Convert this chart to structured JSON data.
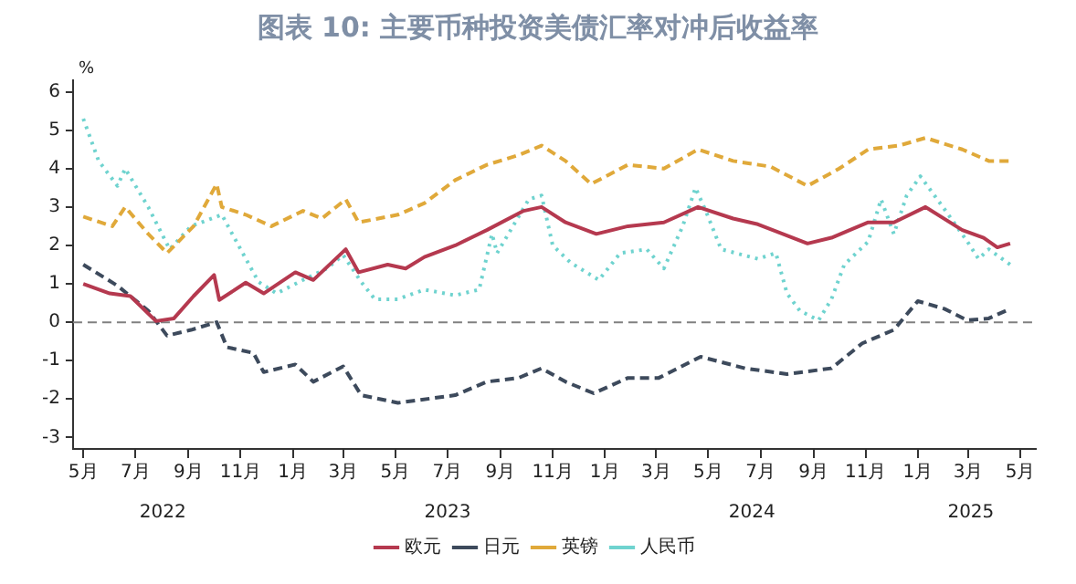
{
  "chart_data": {
    "type": "line",
    "title": "图表 10: 主要币种投资美债汇率对冲后收益率",
    "ylabel": "%",
    "xlim": [
      "2022-04-19",
      "2025-05-19"
    ],
    "xticks": [
      {
        "value": "2022-05",
        "label": "5月"
      },
      {
        "value": "2022-07",
        "label": "7月"
      },
      {
        "value": "2022-09",
        "label": "9月"
      },
      {
        "value": "2022-11",
        "label": "11月"
      },
      {
        "value": "2023-01",
        "label": "1月"
      },
      {
        "value": "2023-03",
        "label": "3月"
      },
      {
        "value": "2023-05",
        "label": "5月"
      },
      {
        "value": "2023-07",
        "label": "7月"
      },
      {
        "value": "2023-09",
        "label": "9月"
      },
      {
        "value": "2023-11",
        "label": "11月"
      },
      {
        "value": "2024-01",
        "label": "1月"
      },
      {
        "value": "2024-03",
        "label": "3月"
      },
      {
        "value": "2024-05",
        "label": "5月"
      },
      {
        "value": "2024-07",
        "label": "7月"
      },
      {
        "value": "2024-09",
        "label": "9月"
      },
      {
        "value": "2024-11",
        "label": "11月"
      },
      {
        "value": "2025-01",
        "label": "1月"
      },
      {
        "value": "2025-03",
        "label": "3月"
      },
      {
        "value": "2025-05",
        "label": "5月"
      }
    ],
    "x2lim": [
      "2022-04-19",
      "2025-05-19"
    ],
    "x2ticks": [
      {
        "value": "2022-08-02",
        "label": "2022"
      },
      {
        "value": "2023-07-01",
        "label": "2023"
      },
      {
        "value": "2024-06-21",
        "label": "2024"
      },
      {
        "value": "2025-03-04",
        "label": "2025"
      }
    ],
    "ylim": [
      -3.3,
      6.3
    ],
    "yticks": [
      -3,
      -2,
      -1,
      0,
      1,
      2,
      3,
      4,
      5,
      6
    ],
    "grid": false,
    "legend": "bottom",
    "marker": "none",
    "ref_lines": [
      {
        "axis": "y",
        "value": 0,
        "color": "#808080",
        "line_style": "dashed"
      }
    ],
    "series": [
      {
        "name": "欧元",
        "color": "#b5394f",
        "line_style": "solid",
        "x": [
          "2022-05-01",
          "2022-06-01",
          "2022-06-25",
          "2022-07-25",
          "2022-08-15",
          "2022-09-07",
          "2022-10-01",
          "2022-10-07",
          "2022-11-07",
          "2022-11-28",
          "2023-01-04",
          "2023-01-25",
          "2023-03-04",
          "2023-03-19",
          "2023-04-22",
          "2023-05-13",
          "2023-06-04",
          "2023-07-10",
          "2023-08-16",
          "2023-09-28",
          "2023-10-19",
          "2023-11-16",
          "2023-12-22",
          "2024-01-28",
          "2024-03-10",
          "2024-04-19",
          "2024-05-30",
          "2024-06-28",
          "2024-08-25",
          "2024-09-22",
          "2024-11-04",
          "2024-12-04",
          "2025-01-10",
          "2025-02-22",
          "2025-03-19",
          "2025-04-04",
          "2025-04-19"
        ],
        "values": [
          1.0,
          0.75,
          0.68,
          0.03,
          0.1,
          0.68,
          1.23,
          0.58,
          1.03,
          0.75,
          1.3,
          1.1,
          1.9,
          1.3,
          1.5,
          1.4,
          1.7,
          2.0,
          2.4,
          2.9,
          3.0,
          2.6,
          2.3,
          2.5,
          2.6,
          3.0,
          2.7,
          2.55,
          2.05,
          2.2,
          2.6,
          2.6,
          3.0,
          2.4,
          2.2,
          1.95,
          2.05
        ]
      },
      {
        "name": "日元",
        "color": "#3d4a5c",
        "line_style": "dashed",
        "x": [
          "2022-05-01",
          "2022-06-10",
          "2022-07-16",
          "2022-08-07",
          "2022-09-04",
          "2022-10-04",
          "2022-10-16",
          "2022-11-16",
          "2022-11-28",
          "2023-01-04",
          "2023-01-25",
          "2023-03-01",
          "2023-03-22",
          "2023-05-04",
          "2023-07-10",
          "2023-08-16",
          "2023-09-22",
          "2023-10-19",
          "2023-11-16",
          "2023-12-19",
          "2024-01-28",
          "2024-03-04",
          "2024-04-22",
          "2024-06-13",
          "2024-08-01",
          "2024-09-22",
          "2024-10-28",
          "2024-12-04",
          "2025-01-01",
          "2025-02-01",
          "2025-02-28",
          "2025-03-25",
          "2025-04-19"
        ],
        "values": [
          1.5,
          0.95,
          0.3,
          -0.35,
          -0.2,
          0,
          -0.65,
          -0.8,
          -1.3,
          -1.1,
          -1.55,
          -1.15,
          -1.9,
          -2.1,
          -1.9,
          -1.55,
          -1.45,
          -1.2,
          -1.55,
          -1.85,
          -1.45,
          -1.45,
          -0.9,
          -1.2,
          -1.35,
          -1.2,
          -0.55,
          -0.2,
          0.55,
          0.35,
          0.05,
          0.1,
          0.35
        ]
      },
      {
        "name": "英镑",
        "color": "#e0a93a",
        "line_style": "dashed",
        "x": [
          "2022-05-01",
          "2022-06-04",
          "2022-06-19",
          "2022-07-16",
          "2022-08-07",
          "2022-09-07",
          "2022-10-04",
          "2022-10-10",
          "2022-11-07",
          "2022-12-07",
          "2023-01-13",
          "2023-02-04",
          "2023-03-04",
          "2023-03-19",
          "2023-05-04",
          "2023-06-04",
          "2023-07-10",
          "2023-08-16",
          "2023-09-22",
          "2023-10-19",
          "2023-11-16",
          "2023-12-16",
          "2024-01-28",
          "2024-03-10",
          "2024-04-19",
          "2024-05-30",
          "2024-07-13",
          "2024-08-25",
          "2024-10-01",
          "2024-11-04",
          "2024-12-10",
          "2025-01-10",
          "2025-02-22",
          "2025-03-25",
          "2025-04-19"
        ],
        "values": [
          2.75,
          2.5,
          3.0,
          2.3,
          1.8,
          2.5,
          3.6,
          3.0,
          2.8,
          2.5,
          2.9,
          2.7,
          3.2,
          2.6,
          2.8,
          3.1,
          3.7,
          4.1,
          4.35,
          4.6,
          4.2,
          3.6,
          4.1,
          4.0,
          4.5,
          4.2,
          4.05,
          3.55,
          4.0,
          4.5,
          4.6,
          4.8,
          4.5,
          4.2,
          4.2
        ]
      },
      {
        "name": "人民币",
        "color": "#6fd3cf",
        "line_style": "dotted",
        "x": [
          "2022-05-01",
          "2022-05-19",
          "2022-06-10",
          "2022-06-19",
          "2022-07-16",
          "2022-08-10",
          "2022-09-04",
          "2022-10-10",
          "2022-11-01",
          "2022-11-22",
          "2022-12-13",
          "2023-01-13",
          "2023-02-10",
          "2023-03-01",
          "2023-03-22",
          "2023-04-07",
          "2023-05-04",
          "2023-06-04",
          "2023-07-10",
          "2023-08-07",
          "2023-08-22",
          "2023-08-28",
          "2023-10-04",
          "2023-10-19",
          "2023-11-01",
          "2023-11-22",
          "2023-12-25",
          "2024-01-19",
          "2024-02-19",
          "2024-03-10",
          "2024-04-01",
          "2024-04-16",
          "2024-04-28",
          "2024-05-16",
          "2024-06-28",
          "2024-07-19",
          "2024-08-01",
          "2024-08-16",
          "2024-09-07",
          "2024-09-22",
          "2024-10-07",
          "2024-11-04",
          "2024-11-19",
          "2024-12-04",
          "2024-12-19",
          "2025-01-04",
          "2025-02-01",
          "2025-02-28",
          "2025-03-13",
          "2025-03-25",
          "2025-04-19"
        ],
        "values": [
          5.3,
          4.2,
          3.55,
          4.0,
          3.0,
          1.9,
          2.5,
          2.8,
          1.9,
          1.05,
          0.75,
          1.1,
          1.4,
          1.75,
          1.05,
          0.6,
          0.6,
          0.85,
          0.7,
          0.85,
          2.3,
          1.8,
          3.2,
          3.3,
          2.0,
          1.55,
          1.1,
          1.8,
          1.9,
          1.4,
          2.5,
          3.5,
          2.9,
          1.9,
          1.65,
          1.8,
          0.75,
          0.3,
          0.05,
          0.6,
          1.5,
          2.1,
          3.2,
          2.3,
          3.3,
          3.8,
          2.95,
          2.1,
          1.65,
          1.9,
          1.5
        ]
      }
    ]
  }
}
